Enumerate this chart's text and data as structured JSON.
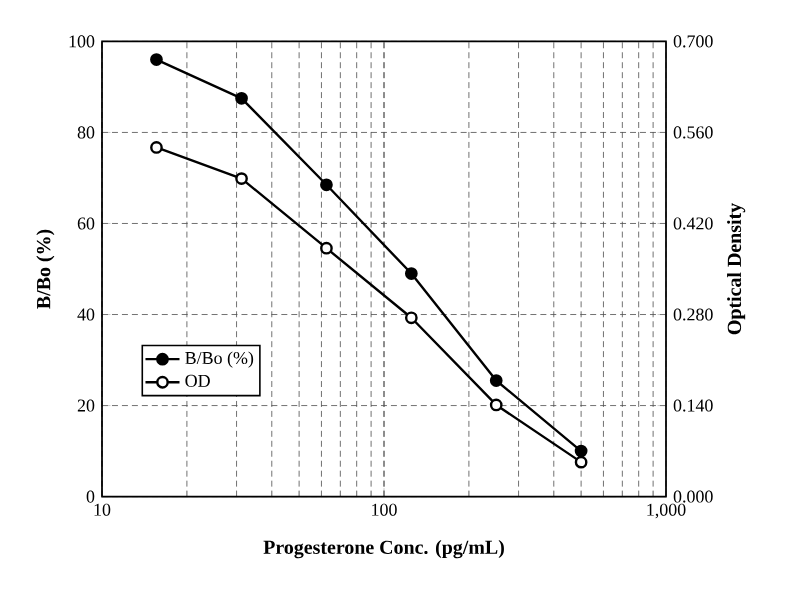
{
  "chart_data": {
    "type": "line",
    "xlabel": "Progesterone Conc. (pg/mL)",
    "ylabel": "B/Bo (%)",
    "y2label": "Optical Density",
    "x": [
      15.6,
      31.25,
      62.5,
      125,
      250,
      500
    ],
    "series": [
      {
        "name": "B/Bo (%)",
        "color": "#000000",
        "values": [
          96,
          87.5,
          68.5,
          49,
          25.5,
          10
        ]
      },
      {
        "name": "OD",
        "color": "#000000",
        "axis": "y2",
        "values": [
          0.537,
          0.489,
          0.382,
          0.275,
          0.141,
          0.053
        ]
      }
    ],
    "log": "x",
    "xlim": [
      10,
      1000
    ],
    "xticks": [
      10,
      100,
      {
        "value": 1000,
        "label": "1,000"
      }
    ],
    "ylim": [
      0,
      100
    ],
    "yticks": [
      0,
      20,
      40,
      60,
      80,
      100
    ],
    "y2lim": [
      0,
      0.7
    ],
    "y2ticks": [
      {
        "value": 0,
        "label": "0.000"
      },
      {
        "value": 0.14,
        "label": "0.140"
      },
      {
        "value": 0.28,
        "label": "0.280"
      },
      {
        "value": 0.42,
        "label": "0.420"
      },
      {
        "value": 0.56,
        "label": "0.560"
      },
      {
        "value": 0.7,
        "label": "0.700"
      }
    ],
    "grid": true,
    "legend": "bottom left",
    "marker": "circle",
    "line_style": "solid"
  }
}
